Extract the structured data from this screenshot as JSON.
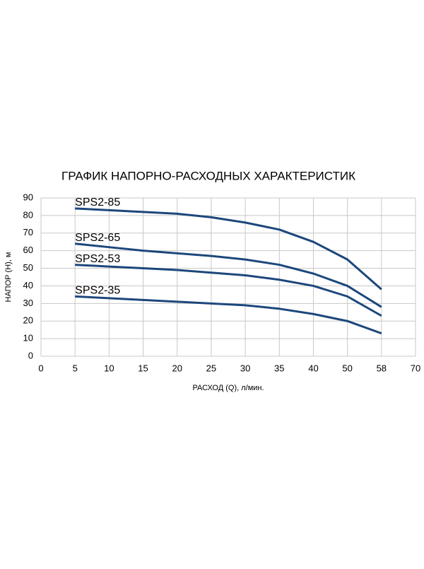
{
  "chart_data": {
    "type": "line",
    "title": "ГРАФИК НАПОРНО-РАСХОДНЫХ ХАРАКТЕРИСТИК",
    "x_label": "РАСХОД (Q), л/мин.",
    "y_label": "НАПОР (H), м",
    "categories": [
      0,
      5,
      10,
      15,
      20,
      25,
      30,
      35,
      40,
      50,
      58,
      70
    ],
    "series": [
      {
        "name": "SPS2-85",
        "color": "#1c477c",
        "values": [
          null,
          84,
          83,
          82,
          81,
          79,
          76,
          72,
          65,
          55,
          38,
          null
        ]
      },
      {
        "name": "SPS2-65",
        "color": "#1c477c",
        "values": [
          null,
          64,
          62,
          60,
          58.5,
          57,
          55,
          52,
          47,
          40,
          28,
          null
        ]
      },
      {
        "name": "SPS2-53",
        "color": "#1c477c",
        "values": [
          null,
          52,
          51,
          50,
          49,
          47.5,
          46,
          43.5,
          40,
          34,
          23,
          null
        ]
      },
      {
        "name": "SPS2-35",
        "color": "#1c477c",
        "values": [
          null,
          34,
          33,
          32,
          31,
          30,
          29,
          27,
          24,
          20,
          13,
          null
        ]
      }
    ],
    "ylim": [
      0,
      90
    ],
    "yticks": [
      0,
      10,
      20,
      30,
      40,
      50,
      60,
      70,
      80,
      90
    ],
    "grid": true
  }
}
